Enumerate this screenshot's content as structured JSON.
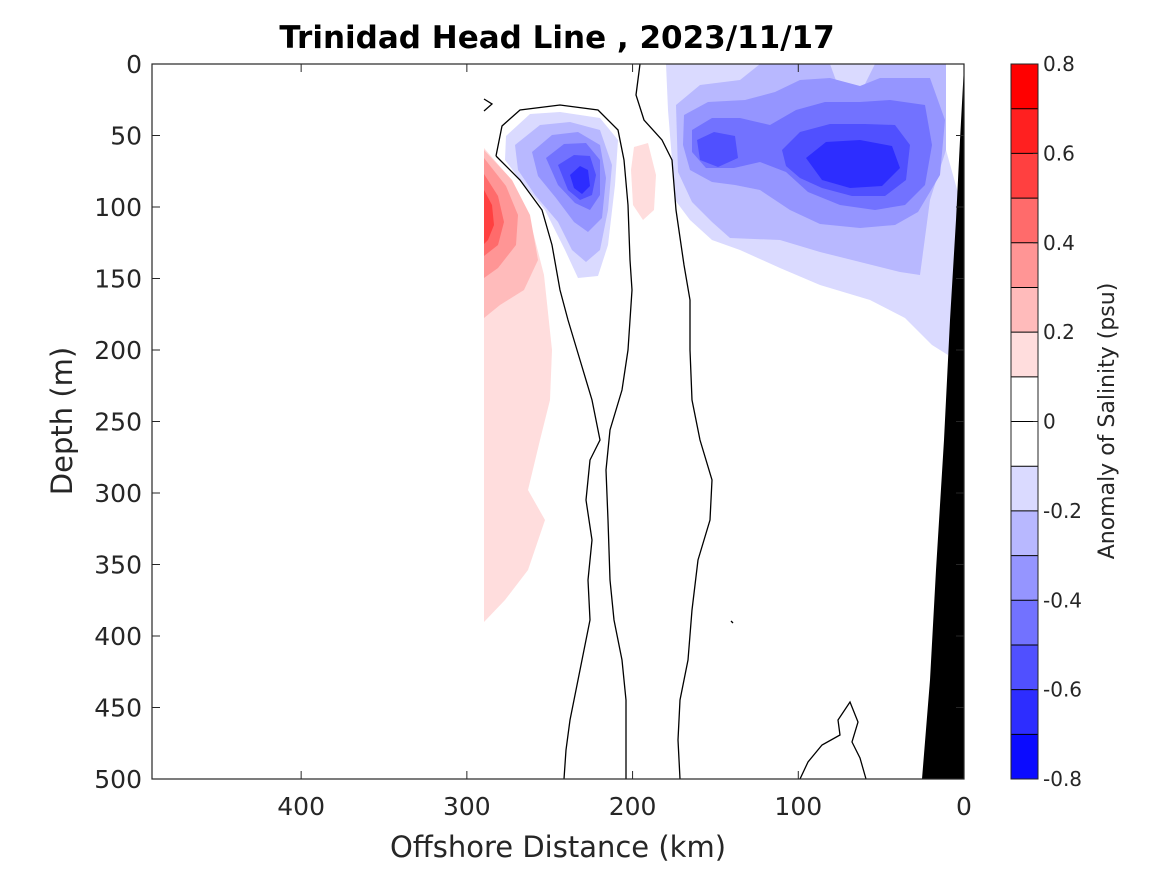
{
  "chart_data": {
    "type": "heatmap",
    "title": "Trinidad Head Line , 2023/11/17",
    "xlabel": "Offshore Distance (km)",
    "ylabel": "Depth (m)",
    "xlim": [
      490,
      0
    ],
    "ylim": [
      0,
      500
    ],
    "x_ticks": [
      400,
      300,
      200,
      100,
      0
    ],
    "x_tick_labels": [
      "400",
      "300",
      "200",
      "100",
      "0"
    ],
    "y_ticks": [
      0,
      50,
      100,
      150,
      200,
      250,
      300,
      350,
      400,
      450,
      500
    ],
    "y_tick_labels": [
      "0",
      "50",
      "100",
      "150",
      "200",
      "250",
      "300",
      "350",
      "400",
      "450",
      "500"
    ],
    "colorbar": {
      "label": "Anomaly of Salinity (psu)",
      "range": [
        -0.8,
        0.8
      ],
      "levels": [
        -0.8,
        -0.7,
        -0.6,
        -0.5,
        -0.4,
        -0.3,
        -0.2,
        -0.1,
        0.0,
        0.1,
        0.2,
        0.3,
        0.4,
        0.5,
        0.6,
        0.7,
        0.8
      ],
      "tick_values": [
        0.8,
        0.6,
        0.4,
        0.2,
        0,
        -0.2,
        -0.4,
        -0.6,
        -0.8
      ],
      "tick_labels": [
        "0.8",
        "0.6",
        "0.4",
        "0.2",
        "0",
        "-0.2",
        "-0.4",
        "-0.6",
        "-0.8"
      ],
      "colors_top_to_bottom": [
        "#ff0000",
        "#ff2020",
        "#ff4040",
        "#ff6b6b",
        "#ff9595",
        "#ffbbbb",
        "#ffdddd",
        "#ffffff",
        "#ffffff",
        "#dadaff",
        "#b8b8ff",
        "#9595ff",
        "#7272ff",
        "#5050ff",
        "#2d2dff",
        "#0b0bff"
      ]
    },
    "features": [
      {
        "kind": "positive-anomaly",
        "peak": 0.5,
        "distance_km": 290,
        "depth_m": 115,
        "extent_distance_km": [
          250,
          292
        ],
        "extent_depth_m": [
          50,
          390
        ]
      },
      {
        "kind": "positive-anomaly",
        "peak": 0.15,
        "distance_km": 195,
        "depth_m": 90,
        "extent_distance_km": [
          188,
          203
        ],
        "extent_depth_m": [
          55,
          110
        ]
      },
      {
        "kind": "negative-anomaly",
        "peak": -0.6,
        "distance_km": 230,
        "depth_m": 85,
        "extent_distance_km": [
          207,
          265
        ],
        "extent_depth_m": [
          50,
          150
        ]
      },
      {
        "kind": "negative-anomaly",
        "peak": -0.6,
        "distance_km": 65,
        "depth_m": 75,
        "extent_distance_km": [
          10,
          180
        ],
        "extent_depth_m": [
          0,
          205
        ]
      },
      {
        "kind": "bathymetry",
        "label": "seafloor",
        "distance_km_at_surface": 0,
        "distance_km_at_500m": 25
      }
    ],
    "colors": {
      "axes": "#262626",
      "contour": "#000000",
      "land": "#000000"
    }
  }
}
